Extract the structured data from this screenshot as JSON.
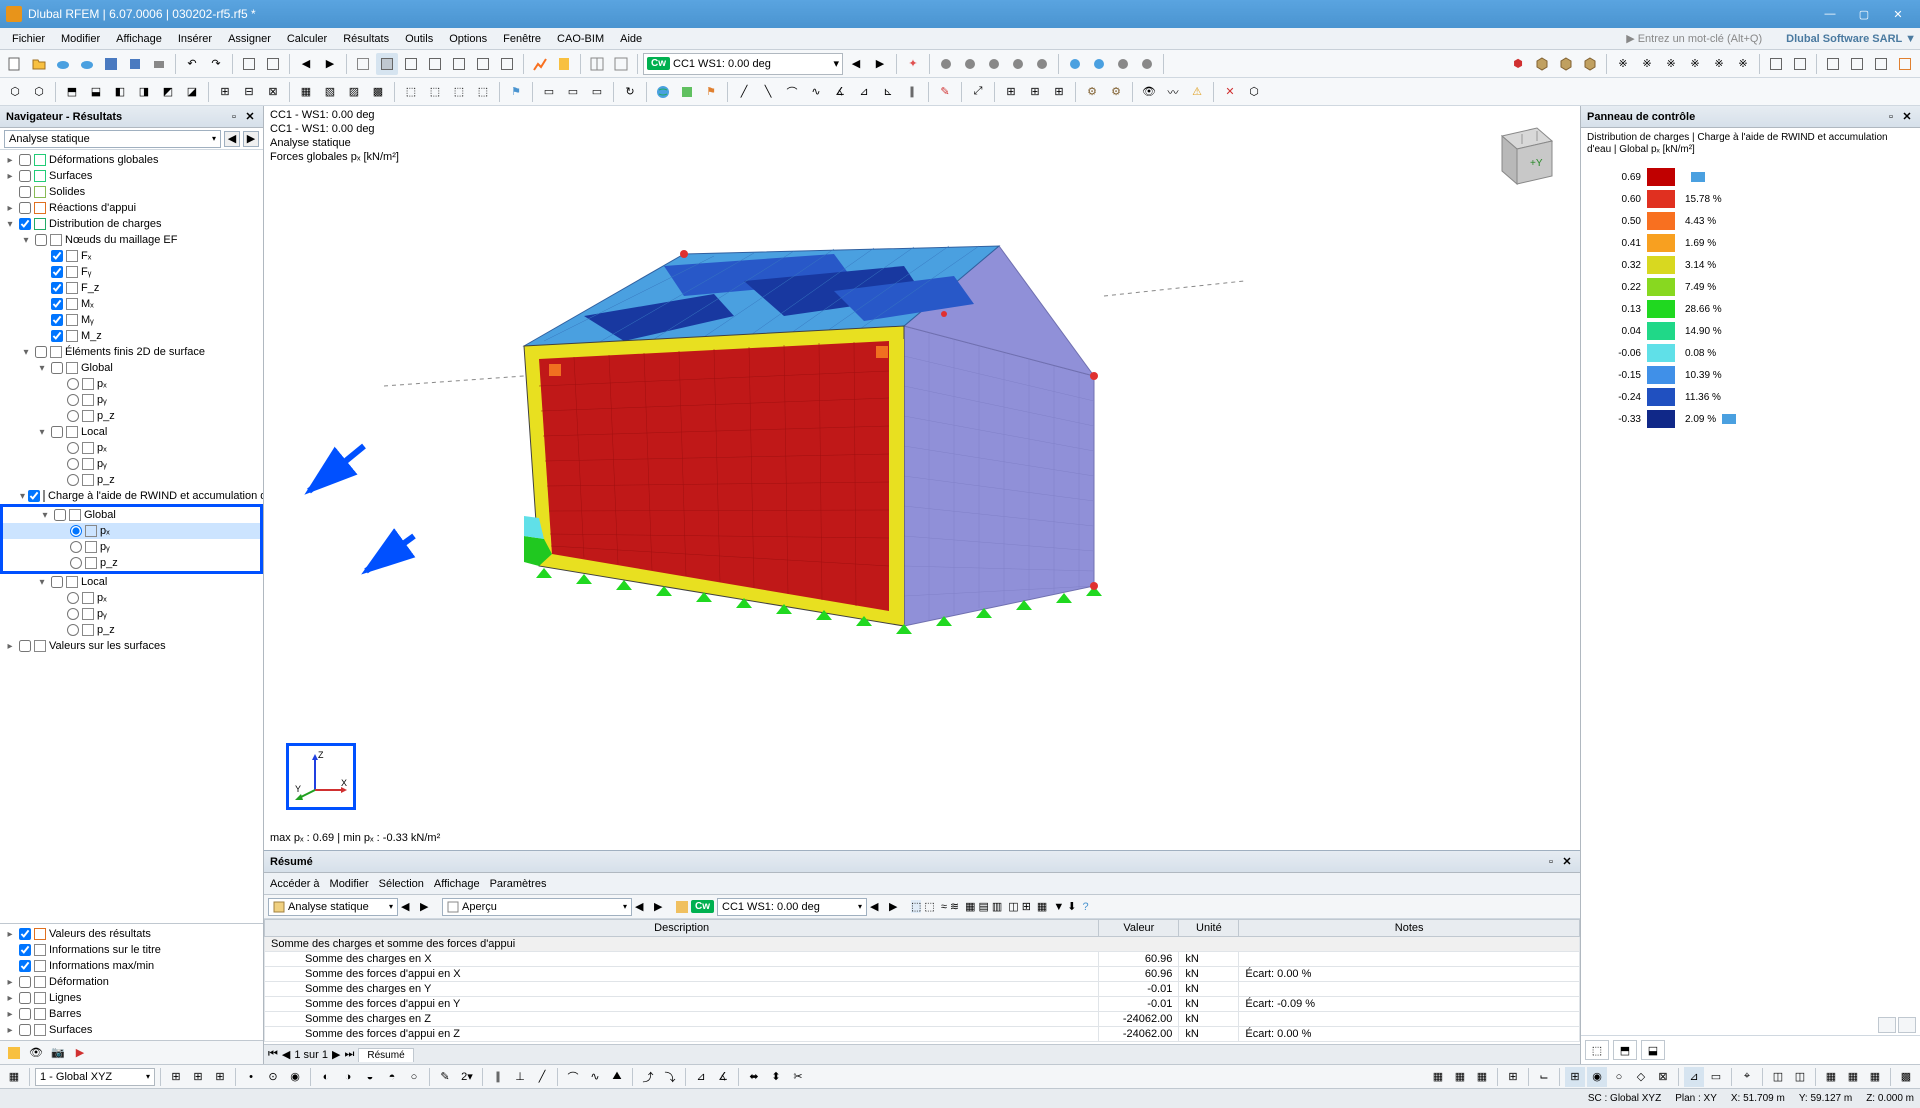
{
  "titlebar": {
    "text": "Dlubal RFEM | 6.07.0006 | 030202-rf5.rf5 *"
  },
  "menu": [
    "Fichier",
    "Modifier",
    "Affichage",
    "Insérer",
    "Assigner",
    "Calculer",
    "Résultats",
    "Outils",
    "Options",
    "Fenêtre",
    "CAO-BIM",
    "Aide"
  ],
  "menu_hint": "▶ Entrez un mot-clé (Alt+Q)",
  "menu_brand": "Dlubal Software SARL ▼",
  "tb1": {
    "colors": [
      "#3a7ec0",
      "#3a7ec0",
      "#00b050",
      "#3aa0e0",
      "#888",
      "#888",
      "#888",
      "#888",
      "#888",
      "#888",
      "#888",
      "#888"
    ],
    "cw": "Cw",
    "loadcase": "CC1   WS1: 0.00 deg"
  },
  "navigator": {
    "title": "Navigateur - Résultats",
    "dropdown": "Analyse statique",
    "nodes": [
      {
        "d": 0,
        "exp": "▸",
        "cb": false,
        "ck": false,
        "ic": "#2c7",
        "label": "Déformations globales"
      },
      {
        "d": 0,
        "exp": "▸",
        "cb": false,
        "ck": false,
        "ic": "#2c7",
        "label": "Surfaces"
      },
      {
        "d": 0,
        "exp": "",
        "cb": false,
        "ck": false,
        "ic": "#8b5",
        "label": "Solides"
      },
      {
        "d": 0,
        "exp": "▸",
        "cb": false,
        "ck": false,
        "ic": "#e07020",
        "label": "Réactions d'appui"
      },
      {
        "d": 0,
        "exp": "▾",
        "cb": true,
        "ck": true,
        "ic": "#2a6",
        "label": "Distribution de charges"
      },
      {
        "d": 1,
        "exp": "▾",
        "cb": false,
        "ck": false,
        "ic": "#888",
        "label": "Nœuds du maillage EF"
      },
      {
        "d": 2,
        "exp": "",
        "cb": true,
        "ck": true,
        "ic": "#888",
        "label": "Fₓ"
      },
      {
        "d": 2,
        "exp": "",
        "cb": true,
        "ck": true,
        "ic": "#888",
        "label": "Fᵧ"
      },
      {
        "d": 2,
        "exp": "",
        "cb": true,
        "ck": true,
        "ic": "#888",
        "label": "F_z"
      },
      {
        "d": 2,
        "exp": "",
        "cb": true,
        "ck": true,
        "ic": "#888",
        "label": "Mₓ"
      },
      {
        "d": 2,
        "exp": "",
        "cb": true,
        "ck": true,
        "ic": "#888",
        "label": "Mᵧ"
      },
      {
        "d": 2,
        "exp": "",
        "cb": true,
        "ck": true,
        "ic": "#888",
        "label": "M_z"
      },
      {
        "d": 1,
        "exp": "▾",
        "cb": false,
        "ck": false,
        "ic": "#888",
        "label": "Éléments finis 2D de surface"
      },
      {
        "d": 2,
        "exp": "▾",
        "cb": false,
        "ck": false,
        "ic": "#888",
        "label": "Global"
      },
      {
        "d": 3,
        "exp": "",
        "rd": false,
        "ic": "#888",
        "label": "pₓ"
      },
      {
        "d": 3,
        "exp": "",
        "rd": false,
        "ic": "#888",
        "label": "pᵧ"
      },
      {
        "d": 3,
        "exp": "",
        "rd": false,
        "ic": "#888",
        "label": "p_z"
      },
      {
        "d": 2,
        "exp": "▾",
        "cb": false,
        "ck": false,
        "ic": "#888",
        "label": "Local"
      },
      {
        "d": 3,
        "exp": "",
        "rd": false,
        "ic": "#888",
        "label": "pₓ"
      },
      {
        "d": 3,
        "exp": "",
        "rd": false,
        "ic": "#888",
        "label": "pᵧ"
      },
      {
        "d": 3,
        "exp": "",
        "rd": false,
        "ic": "#888",
        "label": "p_z"
      },
      {
        "d": 1,
        "exp": "▾",
        "cb": true,
        "ck": true,
        "ic": "#888",
        "label": "Charge à l'aide de RWIND et accumulation d'eau",
        "hl": true
      },
      {
        "d": 2,
        "exp": "▾",
        "cb": false,
        "ck": false,
        "ic": "#888",
        "label": "Global",
        "box": "start"
      },
      {
        "d": 3,
        "exp": "",
        "rd": true,
        "ic": "#888",
        "label": "pₓ",
        "sel": true
      },
      {
        "d": 3,
        "exp": "",
        "rd": false,
        "ic": "#888",
        "label": "pᵧ"
      },
      {
        "d": 3,
        "exp": "",
        "rd": false,
        "ic": "#888",
        "label": "p_z",
        "box": "end"
      },
      {
        "d": 2,
        "exp": "▾",
        "cb": false,
        "ck": false,
        "ic": "#888",
        "label": "Local"
      },
      {
        "d": 3,
        "exp": "",
        "rd": false,
        "ic": "#888",
        "label": "pₓ"
      },
      {
        "d": 3,
        "exp": "",
        "rd": false,
        "ic": "#888",
        "label": "pᵧ"
      },
      {
        "d": 3,
        "exp": "",
        "rd": false,
        "ic": "#888",
        "label": "p_z"
      },
      {
        "d": 0,
        "exp": "▸",
        "cb": false,
        "ck": false,
        "ic": "#888",
        "label": "Valeurs sur les surfaces"
      }
    ],
    "lower": [
      {
        "d": 0,
        "exp": "▸",
        "cb": true,
        "ck": true,
        "ic": "#e07020",
        "label": "Valeurs des résultats"
      },
      {
        "d": 0,
        "exp": "",
        "cb": true,
        "ck": true,
        "ic": "#888",
        "label": "Informations sur le titre"
      },
      {
        "d": 0,
        "exp": "",
        "cb": true,
        "ck": true,
        "ic": "#888",
        "label": "Informations max/min"
      },
      {
        "d": 0,
        "exp": "▸",
        "cb": false,
        "ck": false,
        "ic": "#888",
        "label": "Déformation"
      },
      {
        "d": 0,
        "exp": "▸",
        "cb": false,
        "ck": false,
        "ic": "#888",
        "label": "Lignes"
      },
      {
        "d": 0,
        "exp": "▸",
        "cb": false,
        "ck": false,
        "ic": "#888",
        "label": "Barres"
      },
      {
        "d": 0,
        "exp": "▸",
        "cb": false,
        "ck": false,
        "ic": "#888",
        "label": "Surfaces"
      }
    ]
  },
  "viewport": {
    "l1": "CC1 - WS1: 0.00 deg",
    "l2": "CC1 - WS1: 0.00 deg",
    "l3": "Analyse statique",
    "l4": "Forces globales pₓ [kN/m²]",
    "minmax": "max pₓ : 0.69 | min pₓ : -0.33 kN/m²"
  },
  "control_panel": {
    "title": "Panneau de contrôle",
    "subtitle": "Distribution de charges | Charge à l'aide de RWIND et accumulation d'eau | Global pₓ [kN/m²]",
    "legend": [
      {
        "val": "0.69",
        "color": "#c00000",
        "pct": "",
        "mark": "#4aa0e0"
      },
      {
        "val": "0.60",
        "color": "#e03020",
        "pct": "15.78 %"
      },
      {
        "val": "0.50",
        "color": "#f87020",
        "pct": "4.43 %"
      },
      {
        "val": "0.41",
        "color": "#f8a020",
        "pct": "1.69 %"
      },
      {
        "val": "0.32",
        "color": "#d8d820",
        "pct": "3.14 %"
      },
      {
        "val": "0.22",
        "color": "#88d820",
        "pct": "7.49 %"
      },
      {
        "val": "0.13",
        "color": "#20d820",
        "pct": "28.66 %"
      },
      {
        "val": "0.04",
        "color": "#20d888",
        "pct": "14.90 %"
      },
      {
        "val": "-0.06",
        "color": "#60e0e8",
        "pct": "0.08 %"
      },
      {
        "val": "-0.15",
        "color": "#4090e8",
        "pct": "10.39 %"
      },
      {
        "val": "-0.24",
        "color": "#2050c0",
        "pct": "11.36 %"
      },
      {
        "val": "-0.33",
        "color": "#102888",
        "pct": "2.09 %",
        "mark": "#4aa0e0"
      }
    ]
  },
  "summary": {
    "title": "Résumé",
    "menus": [
      "Accéder à",
      "Modifier",
      "Sélection",
      "Affichage",
      "Paramètres"
    ],
    "dd": "Analyse statique",
    "dd2": "Aperçu",
    "cw": "Cw",
    "lc": "CC1   WS1: 0.00 deg",
    "headers": [
      "Description",
      "Valeur",
      "Unité",
      "Notes"
    ],
    "section": "Somme des charges et somme des forces d'appui",
    "rows": [
      {
        "d": "Somme des charges en X",
        "v": "60.96",
        "u": "kN",
        "n": ""
      },
      {
        "d": "Somme des forces d'appui en X",
        "v": "60.96",
        "u": "kN",
        "n": "Écart: 0.00 %"
      },
      {
        "d": "Somme des charges en Y",
        "v": "-0.01",
        "u": "kN",
        "n": ""
      },
      {
        "d": "Somme des forces d'appui en Y",
        "v": "-0.01",
        "u": "kN",
        "n": "Écart: -0.09 %"
      },
      {
        "d": "Somme des charges en Z",
        "v": "-24062.00",
        "u": "kN",
        "n": ""
      },
      {
        "d": "Somme des forces d'appui en Z",
        "v": "-24062.00",
        "u": "kN",
        "n": "Écart: 0.00 %"
      }
    ],
    "pager": "1 sur 1",
    "tab": "Résumé"
  },
  "bot": {
    "dd": "1 - Global XYZ"
  },
  "status": {
    "coords": "SC : Global XYZ",
    "plan": "Plan : XY",
    "x": "X: 51.709 m",
    "y": "Y: 59.127 m",
    "z": "Z: 0.000 m"
  },
  "model": {
    "roof_dash": "#888",
    "colors": {
      "roof_deep": "#1838a0",
      "roof_mid": "#2858c8",
      "roof_light": "#4aa0e0",
      "wall_side": "#9090d8",
      "wall_front": "#c01818",
      "yellow": "#e8e020",
      "green": "#20c820",
      "cyan": "#60e0e8",
      "orange": "#f07020",
      "outline": "#404080"
    }
  }
}
